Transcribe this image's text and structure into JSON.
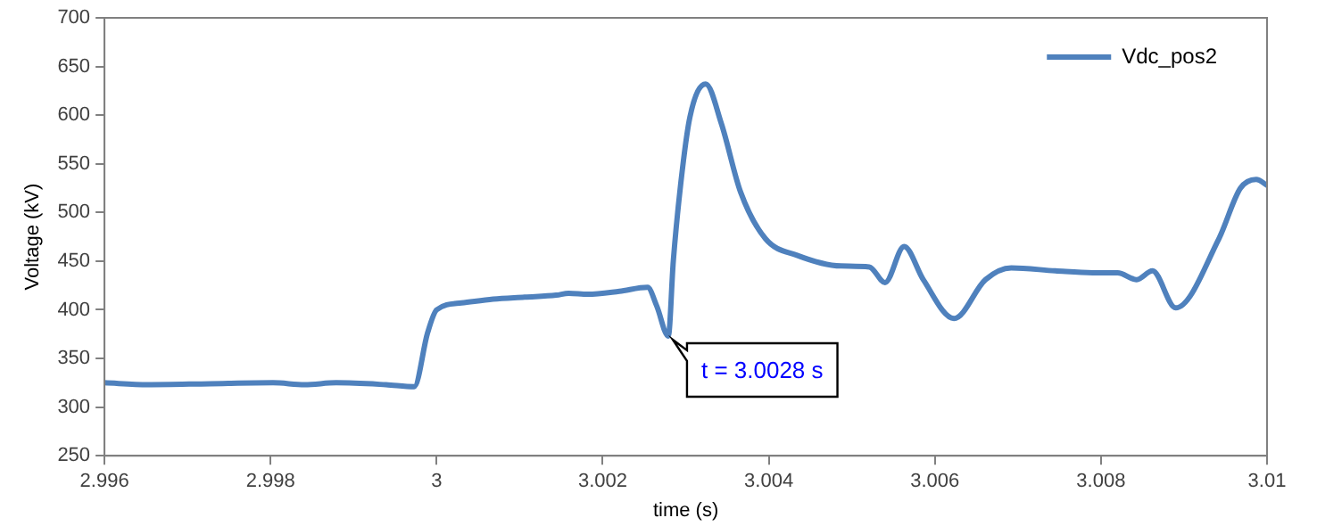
{
  "chart_data": {
    "type": "line",
    "xlabel": "time (s)",
    "ylabel": "Voltage (kV)",
    "xlim": [
      2.996,
      3.01
    ],
    "xticks": [
      2.996,
      2.998,
      3,
      3.002,
      3.004,
      3.006,
      3.008,
      3.01
    ],
    "ylim": [
      250,
      700
    ],
    "yticks": [
      250,
      300,
      350,
      400,
      450,
      500,
      550,
      600,
      650,
      700
    ],
    "grid": false,
    "legend": "top right",
    "marker": "none",
    "line_style": "solid",
    "annotations": [
      {
        "text": "t = 3.0028 s",
        "x": 3.0028,
        "y": 373
      }
    ],
    "series": [
      {
        "name": "Vdc_pos2",
        "color": "#4f81bd",
        "x": [
          2.996,
          2.99652,
          2.99727,
          2.99803,
          2.99841,
          2.99879,
          2.99939,
          2.99973,
          2.99989,
          3.0,
          3.0003,
          3.00068,
          3.00106,
          3.00144,
          3.00159,
          3.00182,
          3.0022,
          3.00254,
          3.00265,
          3.00279,
          3.00285,
          3.00294,
          3.00305,
          3.00324,
          3.00343,
          3.00366,
          3.00396,
          3.00434,
          3.00487,
          3.00521,
          3.0054,
          3.00563,
          3.00586,
          3.00623,
          3.00661,
          3.00692,
          3.00745,
          3.0079,
          3.0082,
          3.00843,
          3.00862,
          3.0089,
          3.00942,
          3.00968,
          3.00987,
          3.01
        ],
        "values": [
          325,
          323,
          324,
          325,
          323,
          325,
          323,
          321,
          376,
          400,
          407,
          411,
          413,
          415,
          417,
          416,
          419,
          423,
          404,
          373,
          450,
          530,
          598,
          632,
          591,
          521,
          473,
          456,
          445,
          444,
          428,
          465,
          431,
          391,
          431,
          443,
          440,
          438,
          438,
          431,
          440,
          402,
          473,
          525,
          534,
          528
        ]
      }
    ]
  }
}
